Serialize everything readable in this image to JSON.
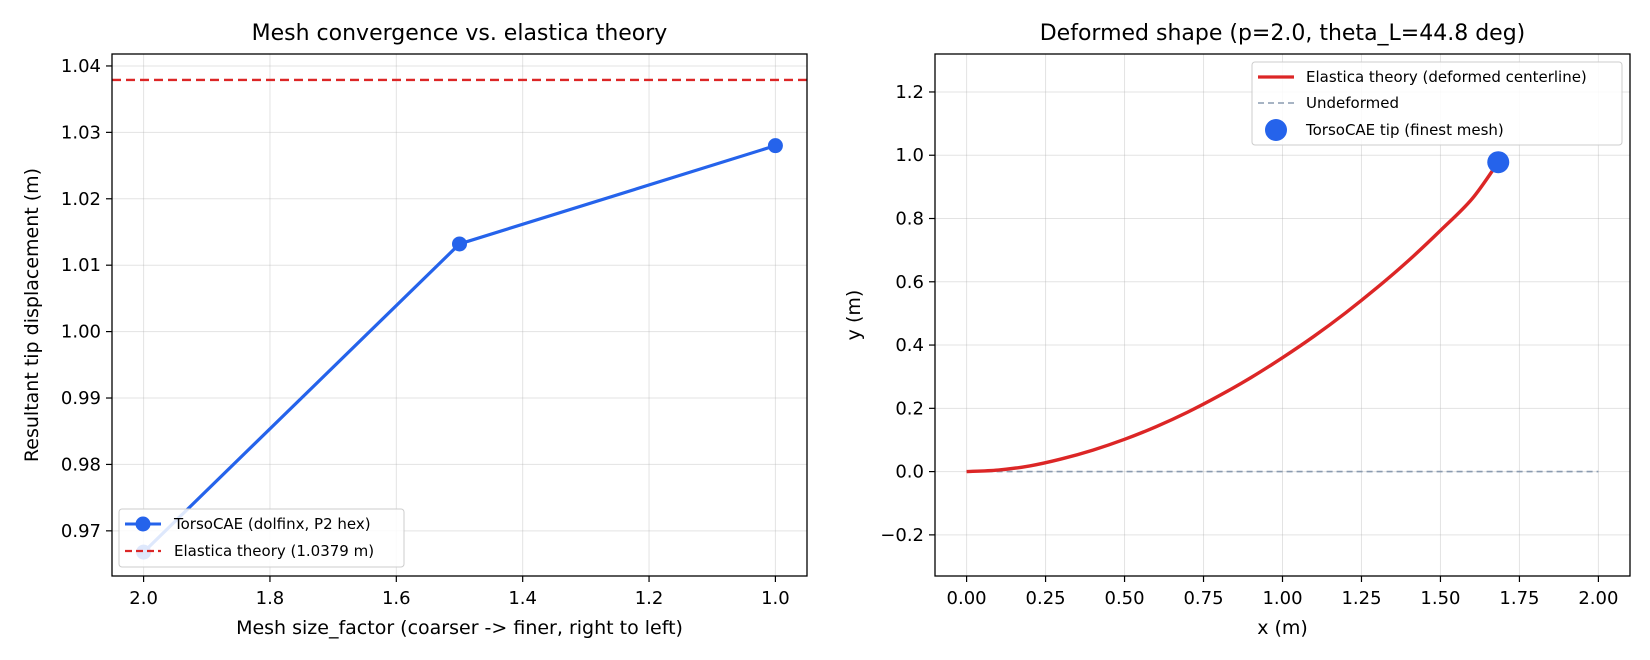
{
  "chart_data": [
    {
      "type": "line",
      "title": "Mesh convergence vs. elastica theory",
      "xlabel": "Mesh size_factor (coarser -> finer, right to left)",
      "ylabel": "Resultant tip displacement (m)",
      "xlim": [
        2.05,
        0.95
      ],
      "ylim": [
        0.9632,
        1.0418
      ],
      "x_inverted": true,
      "xticks": [
        2.0,
        1.8,
        1.6,
        1.4,
        1.2,
        1.0
      ],
      "xtick_labels": [
        "2.0",
        "1.8",
        "1.6",
        "1.4",
        "1.2",
        "1.0"
      ],
      "yticks": [
        0.97,
        0.98,
        0.99,
        1.0,
        1.01,
        1.02,
        1.03,
        1.04
      ],
      "ytick_labels": [
        "0.97",
        "0.98",
        "0.99",
        "1.00",
        "1.01",
        "1.02",
        "1.03",
        "1.04"
      ],
      "grid": true,
      "legend_position": "lower-left",
      "series": [
        {
          "name": "TorsoCAE (dolfinx, P2 hex)",
          "kind": "line-marker",
          "color": "#2563eb",
          "x": [
            2.0,
            1.5,
            1.0
          ],
          "y": [
            0.9668,
            1.0132,
            1.028
          ]
        },
        {
          "name": "Elastica theory (1.0379 m)",
          "kind": "hline-dashed",
          "color": "#dc2626",
          "y": 1.0379
        }
      ]
    },
    {
      "type": "line",
      "title": "Deformed shape (p=2.0, theta_L=44.8 deg)",
      "xlabel": "x (m)",
      "ylabel": "y (m)",
      "xlim": [
        -0.1,
        2.1
      ],
      "ylim": [
        -0.33,
        1.32
      ],
      "xticks": [
        0.0,
        0.25,
        0.5,
        0.75,
        1.0,
        1.25,
        1.5,
        1.75,
        2.0
      ],
      "xtick_labels": [
        "0.00",
        "0.25",
        "0.50",
        "0.75",
        "1.00",
        "1.25",
        "1.50",
        "1.75",
        "2.00"
      ],
      "yticks": [
        -0.2,
        0.0,
        0.2,
        0.4,
        0.6,
        0.8,
        1.0,
        1.2
      ],
      "ytick_labels": [
        "−0.2",
        "0.0",
        "0.2",
        "0.4",
        "0.6",
        "0.8",
        "1.0",
        "1.2"
      ],
      "grid": true,
      "legend_position": "top-right",
      "series": [
        {
          "name": "Elastica theory (deformed centerline)",
          "kind": "line",
          "color": "#dc2626",
          "x": [
            0.0,
            0.1,
            0.2,
            0.3,
            0.4,
            0.5,
            0.6,
            0.7,
            0.8,
            0.9,
            1.0,
            1.1,
            1.2,
            1.3,
            1.4,
            1.5,
            1.6,
            1.683
          ],
          "y": [
            0.0,
            0.005,
            0.018,
            0.04,
            0.068,
            0.102,
            0.142,
            0.188,
            0.24,
            0.297,
            0.36,
            0.428,
            0.502,
            0.582,
            0.668,
            0.762,
            0.862,
            0.978
          ]
        },
        {
          "name": "Undeformed",
          "kind": "line-dashed",
          "color": "#8a9bb0",
          "x": [
            0.0,
            2.0
          ],
          "y": [
            0.0,
            0.0
          ]
        },
        {
          "name": "TorsoCAE tip (finest mesh)",
          "kind": "marker",
          "color": "#2563eb",
          "x": [
            1.683
          ],
          "y": [
            0.978
          ]
        }
      ]
    }
  ]
}
